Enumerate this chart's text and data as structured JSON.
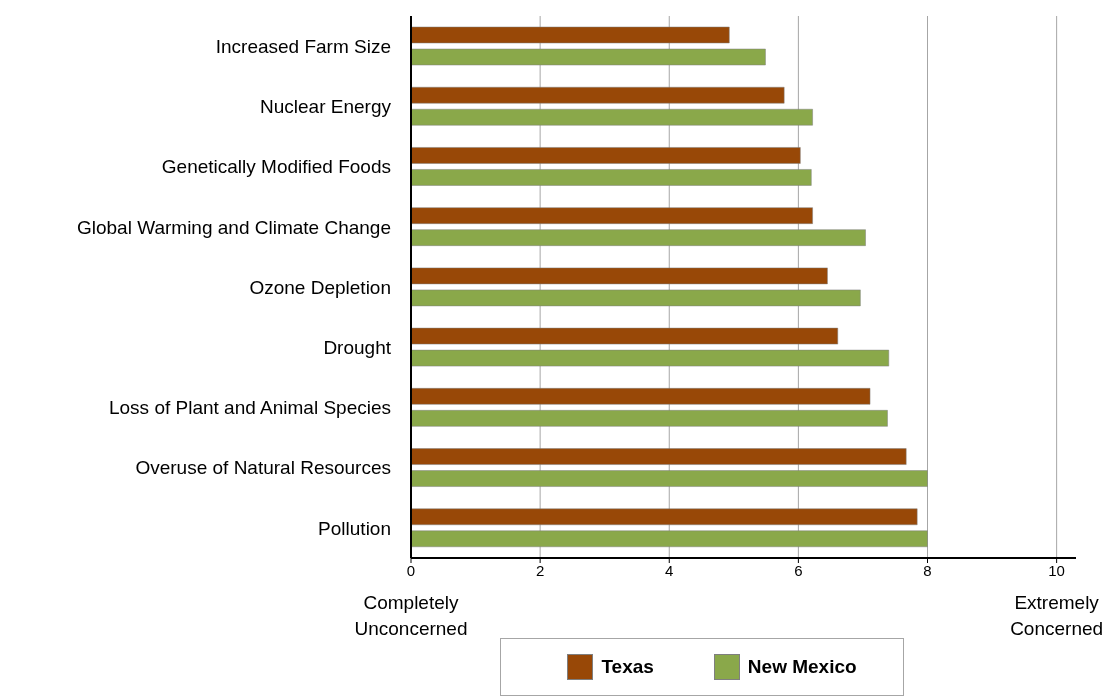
{
  "chart_data": {
    "type": "bar",
    "orientation": "horizontal",
    "categories": [
      "Increased Farm Size",
      "Nuclear Energy",
      "Genetically Modified Foods",
      "Global Warming and Climate Change",
      "Ozone Depletion",
      "Drought",
      "Loss of Plant and Animal Species",
      "Overuse of Natural Resources",
      "Pollution"
    ],
    "series": [
      {
        "name": "Texas",
        "color": "#984807",
        "values": [
          4.93,
          5.78,
          6.03,
          6.22,
          6.45,
          6.61,
          7.11,
          7.67,
          7.84
        ]
      },
      {
        "name": "New Mexico",
        "color": "#8aa84a",
        "values": [
          5.49,
          6.22,
          6.2,
          7.04,
          6.96,
          7.4,
          7.38,
          8.0,
          8.0
        ]
      }
    ],
    "xlim": [
      0,
      10.3
    ],
    "xticks": [
      0,
      2,
      4,
      6,
      8,
      10
    ],
    "grid": "x",
    "legend": "bottom",
    "annotations": [
      "Completely Unconcerned",
      "Extremely Concerned"
    ]
  }
}
